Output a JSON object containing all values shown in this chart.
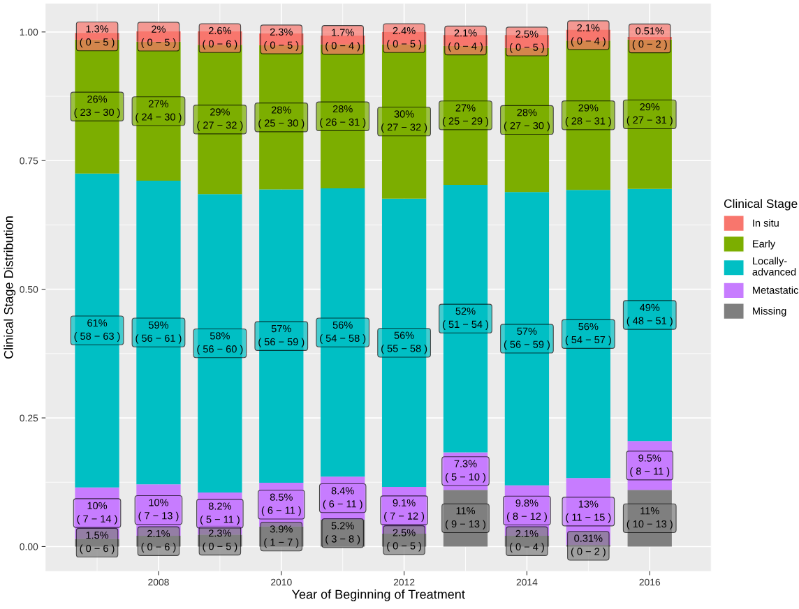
{
  "chart_data": {
    "type": "bar",
    "stacked": true,
    "xlabel": "Year of Beginning of Treatment",
    "ylabel": "Clinical Stage Distribution",
    "legend_title": "Clinical Stage",
    "x": [
      2007,
      2008,
      2009,
      2010,
      2011,
      2012,
      2013,
      2014,
      2015,
      2016
    ],
    "xlim": [
      2006.16,
      2017.0
    ],
    "xticks": [
      2008,
      2010,
      2012,
      2014,
      2016
    ],
    "ylim": [
      -0.048,
      1.055
    ],
    "yticks": [
      {
        "value": 0,
        "label": "0.00"
      },
      {
        "value": 0.25,
        "label": "0.25"
      },
      {
        "value": 0.5,
        "label": "0.50"
      },
      {
        "value": 0.75,
        "label": "0.75"
      },
      {
        "value": 1,
        "label": "1.00"
      }
    ],
    "grid": true,
    "legend": "right",
    "series": [
      {
        "name": "Missing",
        "color": "#7f7f7f",
        "values": [
          0.015,
          0.021,
          0.023,
          0.039,
          0.052,
          0.025,
          0.11,
          0.021,
          0.0031,
          0.11
        ],
        "value_labels": [
          "1.5%\n( 0 − 6 )",
          "2.1%\n( 0 − 6 )",
          "2.3%\n( 0 − 5 )",
          "3.9%\n( 1 − 7 )",
          "5.2%\n( 3 − 8 )",
          "2.5%\n( 0 − 5 )",
          "11%\n( 9 − 13 )",
          "2.1%\n( 0 − 4 )",
          "0.31%\n( 0 − 2 )",
          "11%\n( 10 − 13 )"
        ]
      },
      {
        "name": "Metastatic",
        "color": "#c77cff",
        "values": [
          0.1,
          0.1,
          0.082,
          0.085,
          0.084,
          0.091,
          0.073,
          0.098,
          0.13,
          0.095
        ],
        "value_labels": [
          "10%\n( 7 − 14 )",
          "10%\n( 7 − 13 )",
          "8.2%\n( 5 − 11 )",
          "8.5%\n( 6 − 11 )",
          "8.4%\n( 6 − 11 )",
          "9.1%\n( 7 − 12 )",
          "7.3%\n( 5 − 10 )",
          "9.8%\n( 8 − 12 )",
          "13%\n( 11 − 15 )",
          "9.5%\n( 8 − 11 )"
        ]
      },
      {
        "name": "Locally-\nadvanced",
        "color": "#00bfc4",
        "values": [
          0.61,
          0.59,
          0.58,
          0.57,
          0.56,
          0.56,
          0.52,
          0.57,
          0.56,
          0.49
        ],
        "value_labels": [
          "61%\n( 58 − 63 )",
          "59%\n( 56 − 61 )",
          "58%\n( 56 − 60 )",
          "57%\n( 56 − 59 )",
          "56%\n( 54 − 58 )",
          "56%\n( 55 − 58 )",
          "52%\n( 51 − 54 )",
          "57%\n( 56 − 59 )",
          "56%\n( 54 − 57 )",
          "49%\n( 48 − 51 )"
        ]
      },
      {
        "name": "Early",
        "color": "#7cae00",
        "values": [
          0.26,
          0.27,
          0.29,
          0.28,
          0.28,
          0.3,
          0.27,
          0.28,
          0.29,
          0.29
        ],
        "value_labels": [
          "26%\n( 23 − 30 )",
          "27%\n( 24 − 30 )",
          "29%\n( 27 − 32 )",
          "28%\n( 25 − 30 )",
          "28%\n( 26 − 31 )",
          "30%\n( 27 − 32 )",
          "27%\n( 25 − 29 )",
          "28%\n( 27 − 30 )",
          "29%\n( 28 − 31 )",
          "29%\n( 27 − 31 )"
        ]
      },
      {
        "name": "In situ",
        "color": "#f8766d",
        "values": [
          0.013,
          0.02,
          0.026,
          0.023,
          0.017,
          0.024,
          0.021,
          0.025,
          0.021,
          0.0051
        ],
        "value_labels": [
          "1.3%\n( 0 − 5 )",
          "2%\n( 0 − 5 )",
          "2.6%\n( 0 − 6 )",
          "2.3%\n( 0 − 5 )",
          "1.7%\n( 0 − 4 )",
          "2.4%\n( 0 − 5 )",
          "2.1%\n( 0 − 4 )",
          "2.5%\n( 0 − 5 )",
          "2.1%\n( 0 − 4 )",
          "0.51%\n( 0 − 2 )"
        ]
      }
    ]
  }
}
